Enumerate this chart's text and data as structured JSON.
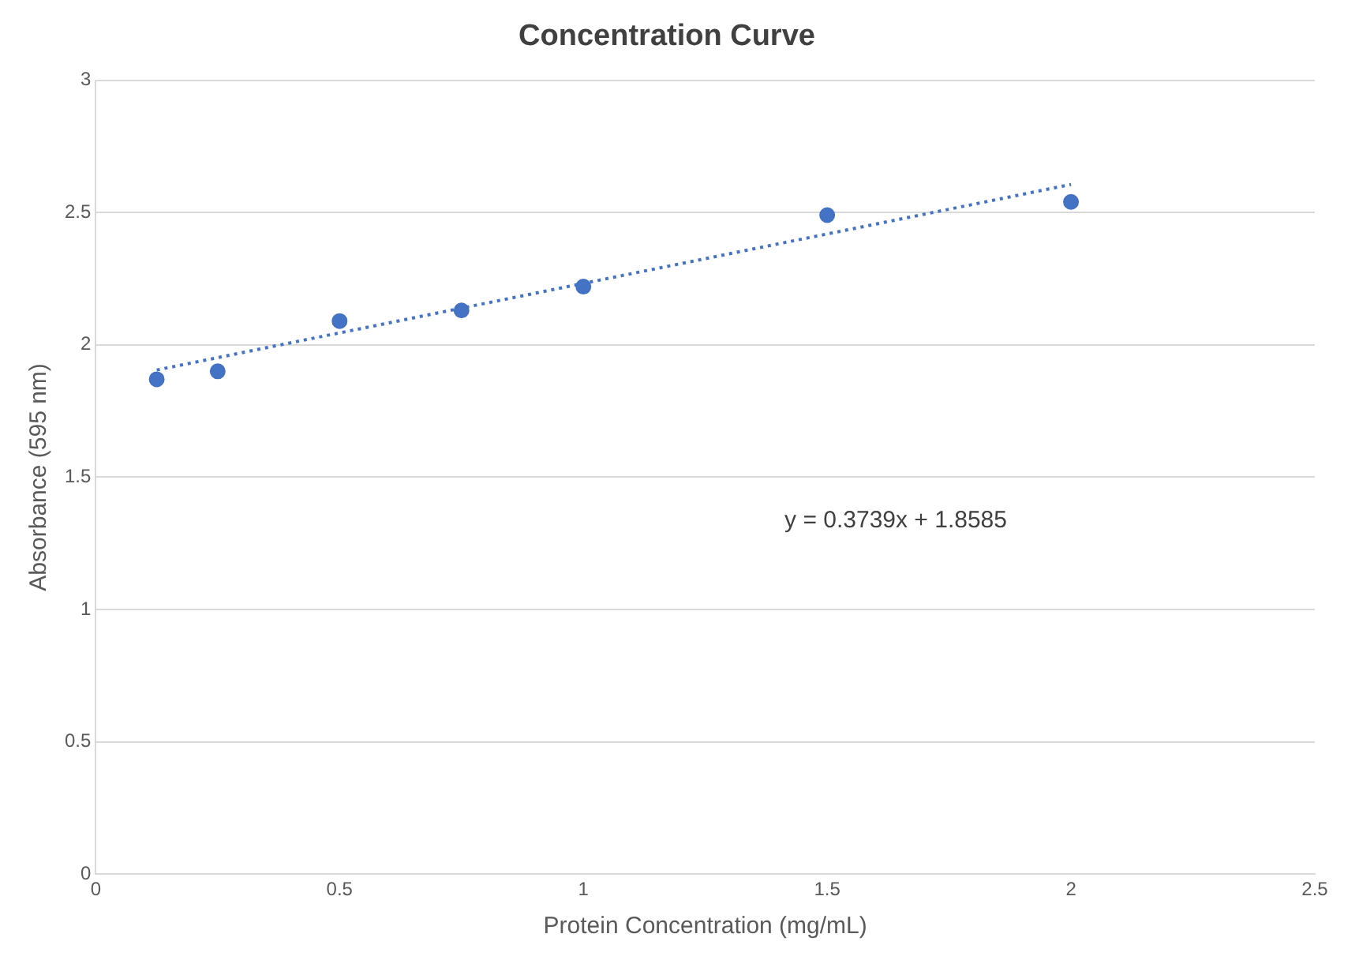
{
  "chart_data": {
    "type": "scatter",
    "title": "Concentration Curve",
    "xlabel": "Protein Concentration (mg/mL)",
    "ylabel": "Absorbance (595 nm)",
    "series": [
      {
        "type": "scatter",
        "color": "#4472c4",
        "x": [
          0.125,
          0.25,
          0.5,
          0.75,
          1,
          1.5,
          2
        ],
        "values": [
          1.87,
          1.9,
          2.09,
          2.13,
          2.22,
          2.49,
          2.54
        ],
        "marker": "circle"
      },
      {
        "type": "line",
        "color": "#4472c4",
        "x": [
          0.125,
          2
        ],
        "values": [
          1.905,
          2.606
        ],
        "line_style": "dotted",
        "marker": "none"
      }
    ],
    "xlim": [
      0,
      2.5
    ],
    "xticks": [
      0,
      0.5,
      1,
      1.5,
      2,
      2.5
    ],
    "ylim": [
      0,
      3
    ],
    "yticks": [
      0,
      0.5,
      1,
      1.5,
      2,
      2.5,
      3
    ],
    "grid": "y",
    "legend": false,
    "annotations": [
      "y = 0.3739x + 1.8585"
    ]
  }
}
